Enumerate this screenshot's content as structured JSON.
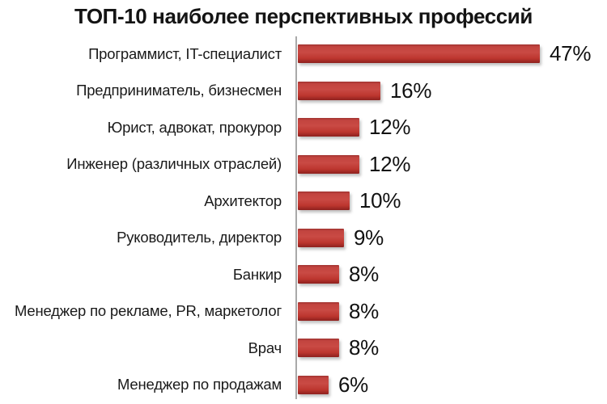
{
  "title": "ТОП-10 наиболее перспективных профессий",
  "colors": {
    "bar": "#c0392e",
    "bar_edge_top": "#a03330",
    "bar_edge_bottom": "#8e211e",
    "axis": "#a9a9a9",
    "text": "#1a1a1a",
    "background": "#ffffff"
  },
  "chart_data": {
    "type": "bar",
    "orientation": "horizontal",
    "title": "ТОП-10 наиболее перспективных профессий",
    "categories": [
      "Программист, IT-специалист",
      "Предприниматель, бизнесмен",
      "Юрист, адвокат, прокурор",
      "Инженер (различных отраслей)",
      "Архитектор",
      "Руководитель, директор",
      "Банкир",
      "Менеджер по рекламе, PR, маркетолог",
      "Врач",
      "Менеджер по продажам"
    ],
    "values": [
      47,
      16,
      12,
      12,
      10,
      9,
      8,
      8,
      8,
      6
    ],
    "value_labels": [
      "47%",
      "16%",
      "12%",
      "12%",
      "10%",
      "9%",
      "8%",
      "8%",
      "8%",
      "6%"
    ],
    "xlabel": "",
    "ylabel": "",
    "xlim": [
      0,
      50
    ],
    "grid": false,
    "legend": false,
    "value_label_position": "right-of-bar"
  }
}
